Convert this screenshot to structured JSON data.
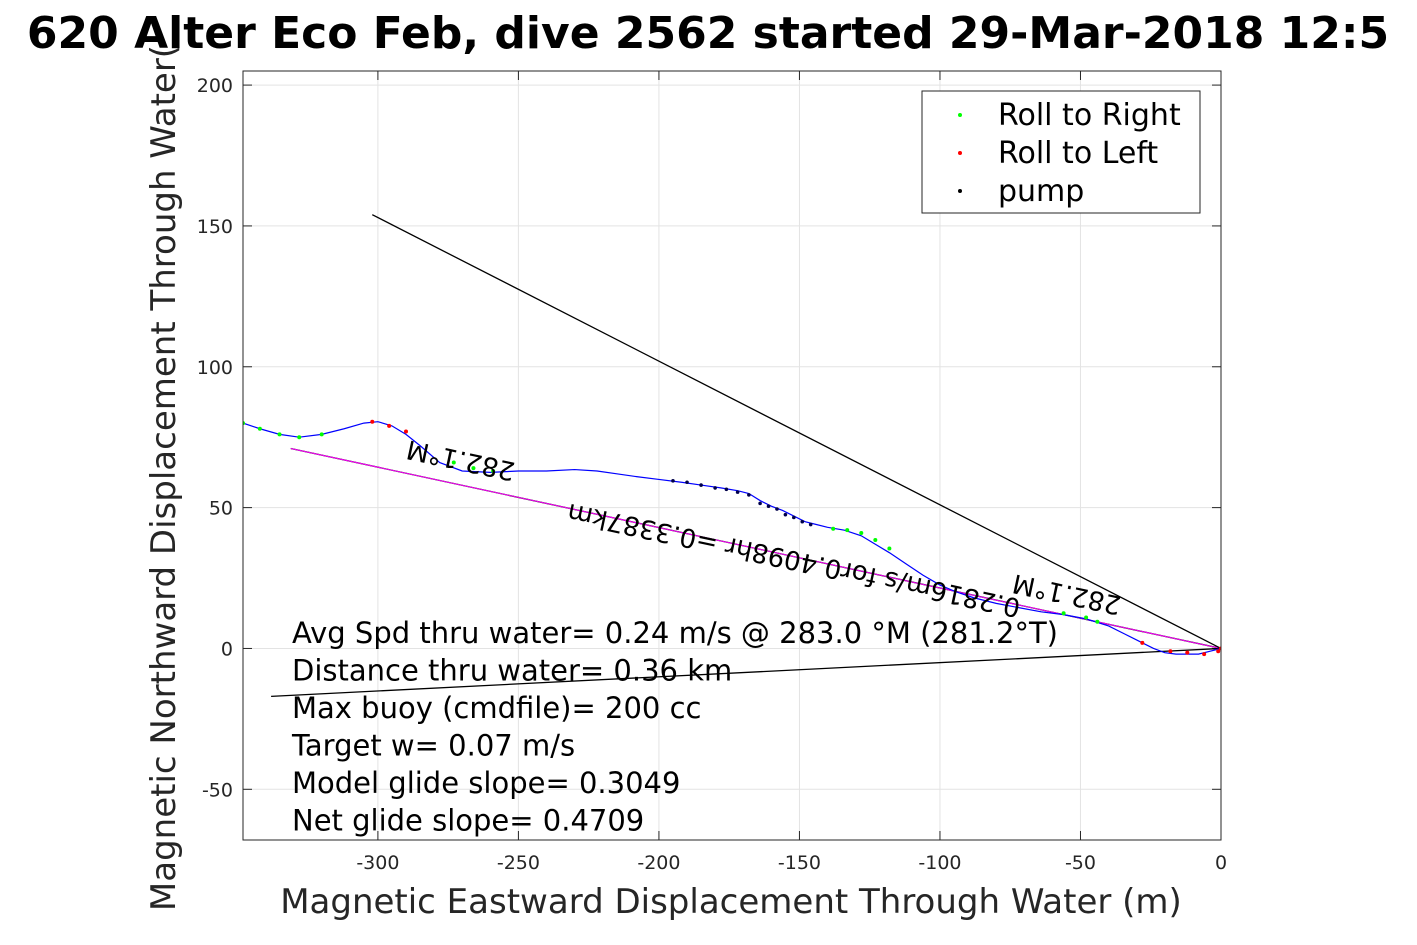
{
  "chart_data": {
    "type": "line",
    "title": "620 Alter Eco Feb, dive 2562 started 29-Mar-2018 12:5",
    "xlabel": "Magnetic Eastward Displacement Through Water (m)",
    "ylabel": "Magnetic Northward Displacement Through Water(",
    "xlim": [
      -348,
      0
    ],
    "ylim": [
      -68,
      205
    ],
    "xticks": [
      -300,
      -250,
      -200,
      -150,
      -100,
      -50,
      0
    ],
    "yticks": [
      -50,
      0,
      50,
      100,
      150,
      200
    ],
    "xtick_labels": [
      "-300",
      "-250",
      "-200",
      "-150",
      "-100",
      "-50",
      "0"
    ],
    "ytick_labels": [
      "-50",
      "0",
      "50",
      "100",
      "150",
      "200"
    ],
    "grid": true,
    "legend": {
      "placement": "top-right",
      "entries": [
        {
          "name": "Roll to Right",
          "color": "#00ff00"
        },
        {
          "name": "Roll to Left",
          "color": "#ff0000"
        },
        {
          "name": "pump",
          "color": "#000000"
        }
      ]
    },
    "track": {
      "color": "#0000ff",
      "x": [
        -348,
        -342,
        -335,
        -328,
        -320,
        -312,
        -305,
        -300,
        -295,
        -290,
        -285,
        -278,
        -270,
        -260,
        -250,
        -240,
        -230,
        -222,
        -215,
        -208,
        -200,
        -192,
        -185,
        -178,
        -172,
        -168,
        -164,
        -160,
        -156,
        -152,
        -148,
        -144,
        -140,
        -134,
        -128,
        -123,
        -118,
        -112,
        -106,
        -100,
        -94,
        -88,
        -80,
        -72,
        -64,
        -56,
        -48,
        -40,
        -34,
        -28,
        -24,
        -20,
        -16,
        -12,
        -8,
        -4,
        0
      ],
      "y": [
        80,
        78,
        76,
        75,
        76,
        78,
        80,
        80.5,
        79,
        76,
        72,
        66,
        63,
        62.5,
        63,
        63,
        63.5,
        63,
        62,
        61,
        60,
        59,
        58,
        57,
        56,
        55,
        52.5,
        50.5,
        49,
        47,
        45,
        44,
        43,
        42,
        40,
        37,
        34,
        30,
        26,
        22.5,
        20,
        18,
        16,
        14.5,
        13,
        12,
        10.5,
        8,
        5,
        2,
        0,
        -1.5,
        -2,
        -2,
        -2,
        -1,
        0
      ]
    },
    "roll_right_points": {
      "x": [
        -348,
        -342,
        -335,
        -328,
        -320,
        -273,
        -266,
        -259,
        -138,
        -133,
        -128,
        -123,
        -118,
        -56,
        -48,
        -44
      ],
      "y": [
        80,
        78,
        76,
        75,
        76,
        66,
        64,
        63,
        42.5,
        42,
        41,
        38.5,
        35.5,
        12.5,
        11,
        9.5
      ]
    },
    "roll_left_points": {
      "x": [
        -302,
        -296,
        -290,
        -28,
        -18,
        -12,
        -6,
        -1,
        0
      ],
      "y": [
        80.5,
        79,
        77,
        2,
        -1,
        -1.5,
        -2,
        -1,
        0
      ]
    },
    "pump_points": {
      "x": [
        -195,
        -190,
        -185,
        -180,
        -176,
        -172,
        -168,
        -164,
        -161,
        -158,
        -155,
        -152,
        -149,
        -146
      ],
      "y": [
        59.5,
        59,
        58,
        57,
        56.5,
        55.5,
        54.5,
        51.5,
        50.5,
        49.5,
        47.5,
        46.5,
        45,
        44
      ]
    },
    "lines": [
      {
        "name": "net-displacement-line",
        "color": "#000000",
        "x": [
          0,
          -331
        ],
        "y": [
          0,
          71
        ]
      },
      {
        "name": "model-glide-line",
        "color": "#ff00ff",
        "x": [
          0,
          -331
        ],
        "y": [
          0,
          71
        ]
      },
      {
        "name": "current-vector-line",
        "color": "#000000",
        "x": [
          0,
          -302
        ],
        "y": [
          0,
          154
        ]
      },
      {
        "name": "depth-averaged-line",
        "color": "#000000",
        "x": [
          0,
          -338
        ],
        "y": [
          0,
          -17
        ]
      }
    ],
    "annotations": {
      "heading_label_1": "282.1°M",
      "heading_label_2": "282.1°M",
      "current_label": "0.2816m/s for0.4098hr =0.3387km",
      "notes": [
        "Avg Spd thru water=  0.24 m/s @ 283.0 °M (281.2°T)",
        "Distance thru water=  0.36 km",
        "Max buoy (cmdfile)= 200 cc",
        "Target w= 0.07 m/s",
        "Model glide slope= 0.3049",
        "Net glide slope= 0.4709"
      ]
    }
  }
}
